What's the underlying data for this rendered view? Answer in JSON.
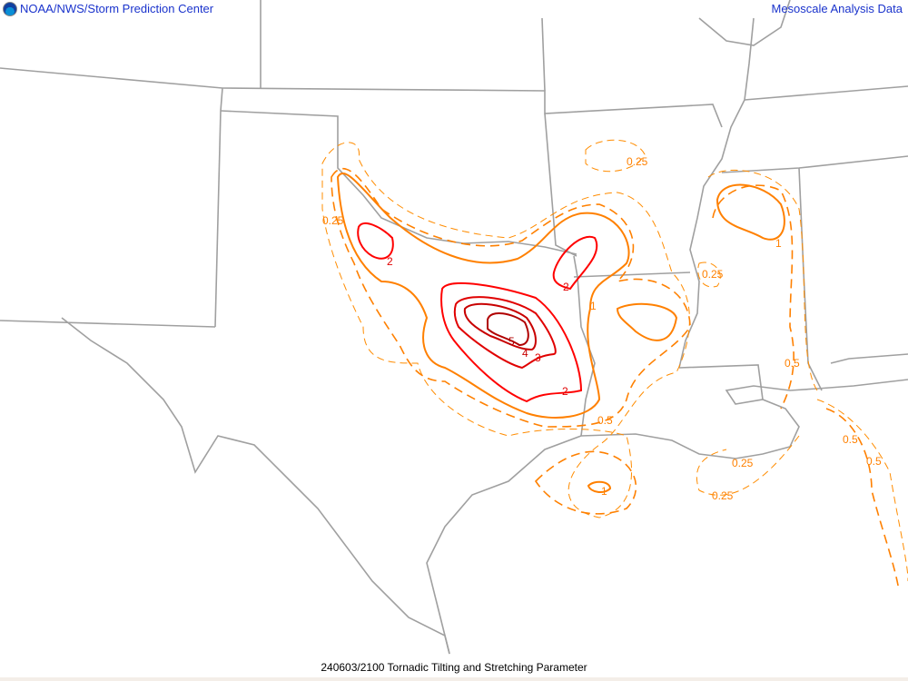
{
  "header": {
    "left_title": "NOAA/NWS/Storm Prediction Center",
    "right_title": "Mesoscale Analysis Data",
    "logo": "noaa-logo"
  },
  "footer": {
    "caption": "240603/2100 Tornadic Tilting and Stretching Parameter"
  },
  "map": {
    "contour_levels": [
      "0.25",
      "0.5",
      "1",
      "2",
      "3",
      "4",
      "5"
    ],
    "colors": {
      "low": "#ff8c00",
      "mid": "#ff8000",
      "high": "#ff0000",
      "peak": "#b00000",
      "borders": "#a0a0a0"
    },
    "labels": {
      "l025a": "0.25",
      "l025b": "0.25",
      "l025c": "0.25",
      "l025d": "0.25",
      "l025e": "0.25",
      "l05a": "0.5",
      "l05b": "0.5",
      "l05c": "0.5",
      "l05d": "0.5",
      "l1a": "1",
      "l1b": "1",
      "l1c": "1",
      "l2a": "2",
      "l2b": "2",
      "l2c": "2",
      "l3": "3",
      "l4": "4",
      "l5": "5"
    }
  }
}
